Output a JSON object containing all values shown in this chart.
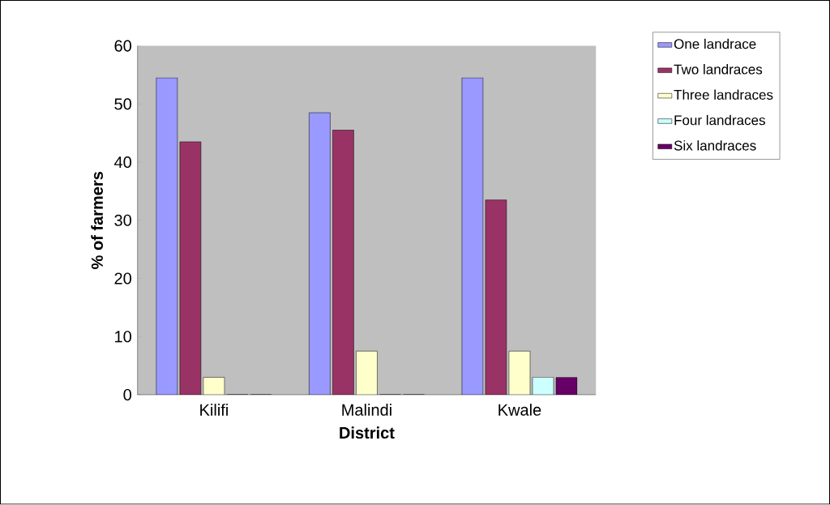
{
  "chart_data": {
    "type": "bar",
    "xlabel": "District",
    "ylabel": "% of farmers",
    "categories": [
      "Kilifi",
      "Malindi",
      "Kwale"
    ],
    "series": [
      {
        "name": "One landrace",
        "color": "#9999ff",
        "values": [
          54.5,
          48.5,
          54.5
        ]
      },
      {
        "name": "Two landraces",
        "color": "#993366",
        "values": [
          43.5,
          45.5,
          33.5
        ]
      },
      {
        "name": "Three landraces",
        "color": "#ffffcc",
        "values": [
          3,
          7.5,
          7.5
        ]
      },
      {
        "name": "Four landraces",
        "color": "#ccffff",
        "values": [
          0,
          0,
          3
        ]
      },
      {
        "name": "Six landraces",
        "color": "#660066",
        "values": [
          0,
          0,
          3
        ]
      }
    ],
    "ylim": [
      0,
      60
    ],
    "yticks": [
      0,
      10,
      20,
      30,
      40,
      50,
      60
    ],
    "grid": false,
    "legend": "top right"
  }
}
